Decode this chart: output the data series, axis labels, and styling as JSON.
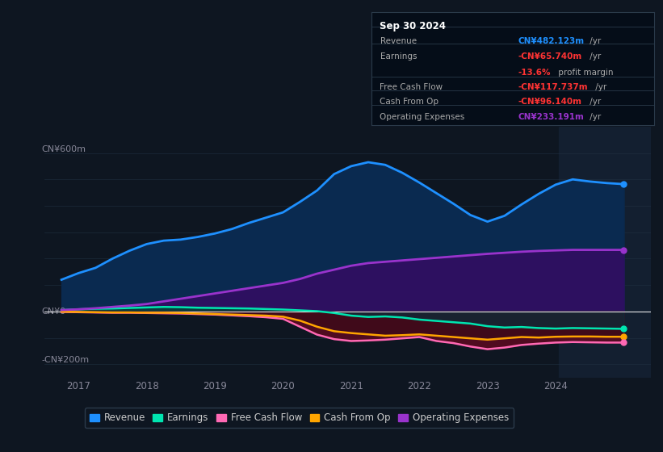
{
  "bg_color": "#0e1621",
  "plot_bg_color": "#0e1621",
  "y_label_top": "CN¥600m",
  "y_label_zero": "CN¥0",
  "y_label_bottom": "-CN¥200m",
  "x_ticks": [
    2017,
    2018,
    2019,
    2020,
    2021,
    2022,
    2023,
    2024
  ],
  "ylim": [
    -250,
    700
  ],
  "xlim": [
    2016.5,
    2025.4
  ],
  "highlight_x_start": 2024.05,
  "highlight_x_end": 2025.4,
  "tooltip_title": "Sep 30 2024",
  "tooltip_rows": [
    {
      "label": "Revenue",
      "value": "CN¥482.123m",
      "suffix": " /yr",
      "value_color": "#1e90ff"
    },
    {
      "label": "Earnings",
      "value": "-CN¥65.740m",
      "suffix": " /yr",
      "value_color": "#ff3333"
    },
    {
      "label": "",
      "value": "-13.6%",
      "suffix": " profit margin",
      "value_color": "#ff3333"
    },
    {
      "label": "Free Cash Flow",
      "value": "-CN¥117.737m",
      "suffix": " /yr",
      "value_color": "#ff3333"
    },
    {
      "label": "Cash From Op",
      "value": "-CN¥96.140m",
      "suffix": " /yr",
      "value_color": "#ff3333"
    },
    {
      "label": "Operating Expenses",
      "value": "CN¥233.191m",
      "suffix": " /yr",
      "value_color": "#9933cc"
    }
  ],
  "legend_items": [
    {
      "label": "Revenue",
      "color": "#1e90ff"
    },
    {
      "label": "Earnings",
      "color": "#00e5b0"
    },
    {
      "label": "Free Cash Flow",
      "color": "#ff69b4"
    },
    {
      "label": "Cash From Op",
      "color": "#ffa500"
    },
    {
      "label": "Operating Expenses",
      "color": "#9933cc"
    }
  ],
  "revenue": [
    120,
    145,
    165,
    200,
    230,
    255,
    268,
    272,
    282,
    295,
    312,
    335,
    355,
    375,
    415,
    458,
    520,
    550,
    565,
    555,
    525,
    488,
    448,
    408,
    365,
    340,
    362,
    405,
    445,
    480,
    500,
    492,
    486,
    482
  ],
  "earnings": [
    5,
    8,
    10,
    11,
    13,
    15,
    17,
    16,
    14,
    13,
    12,
    11,
    9,
    7,
    4,
    1,
    -6,
    -16,
    -21,
    -19,
    -23,
    -31,
    -36,
    -41,
    -46,
    -56,
    -61,
    -59,
    -63,
    -65,
    -63,
    -64,
    -65,
    -66
  ],
  "free_cash_flow": [
    -2,
    -3,
    -4,
    -5,
    -5,
    -6,
    -7,
    -8,
    -10,
    -12,
    -15,
    -18,
    -22,
    -28,
    -58,
    -88,
    -105,
    -112,
    -110,
    -107,
    -102,
    -97,
    -112,
    -120,
    -133,
    -143,
    -137,
    -127,
    -122,
    -118,
    -116,
    -117,
    -118,
    -118
  ],
  "cash_from_op": [
    -1,
    -2,
    -3,
    -4,
    -4,
    -5,
    -5,
    -6,
    -8,
    -10,
    -12,
    -14,
    -16,
    -20,
    -35,
    -58,
    -75,
    -82,
    -87,
    -92,
    -90,
    -87,
    -92,
    -97,
    -102,
    -107,
    -102,
    -97,
    -99,
    -96,
    -95,
    -95,
    -96,
    -96
  ],
  "operating_expenses": [
    5,
    8,
    12,
    17,
    22,
    28,
    38,
    48,
    58,
    68,
    78,
    88,
    98,
    108,
    123,
    143,
    158,
    173,
    183,
    188,
    193,
    198,
    203,
    208,
    213,
    218,
    222,
    226,
    229,
    231,
    233,
    233,
    233,
    233
  ],
  "x": [
    2016.75,
    2017.0,
    2017.25,
    2017.5,
    2017.75,
    2018.0,
    2018.25,
    2018.5,
    2018.75,
    2019.0,
    2019.25,
    2019.5,
    2019.75,
    2020.0,
    2020.25,
    2020.5,
    2020.75,
    2021.0,
    2021.25,
    2021.5,
    2021.75,
    2022.0,
    2022.25,
    2022.5,
    2022.75,
    2023.0,
    2023.25,
    2023.5,
    2023.75,
    2024.0,
    2024.25,
    2024.5,
    2024.75,
    2025.0
  ]
}
